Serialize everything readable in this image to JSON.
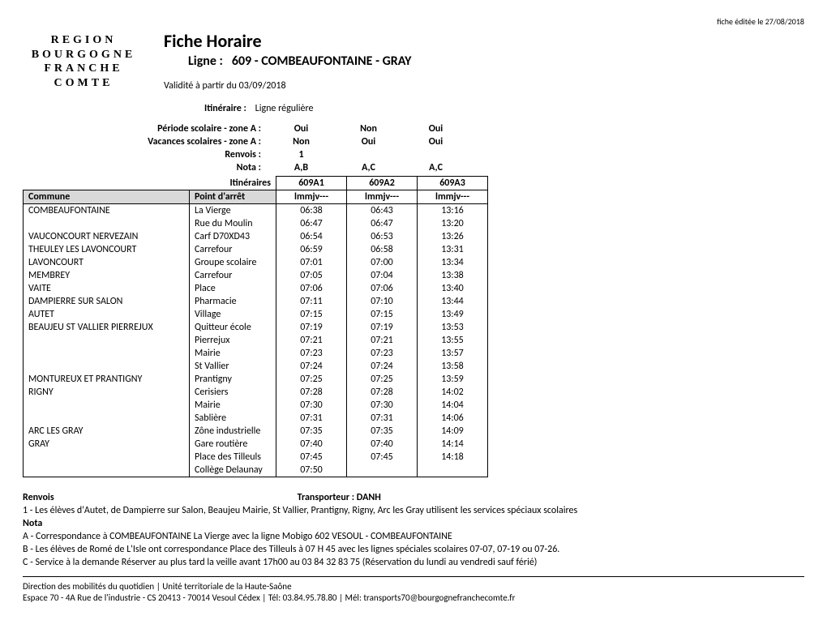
{
  "edit_date": "fiche éditée le 27/08/2018",
  "logo_lines": [
    "REGION",
    "BOURGOGNE",
    "FRANCHE",
    "COMTE"
  ],
  "main_title": "Fiche Horaire",
  "line_prefix": "Ligne :",
  "line_name": "609 - COMBEAUFONTAINE - GRAY",
  "validity": "Validité à partir du 03/09/2018",
  "itinerary_label": "Itinéraire :",
  "itinerary_value": "Ligne régulière",
  "meta_rows": [
    {
      "label": "Période scolaire - zone A :",
      "vals": [
        "Oui",
        "Non",
        "Oui"
      ]
    },
    {
      "label": "Vacances scolaires - zone A :",
      "vals": [
        "Non",
        "Oui",
        "Oui"
      ]
    },
    {
      "label": "Renvois :",
      "vals": [
        "1",
        "",
        ""
      ]
    },
    {
      "label": "Nota :",
      "vals": [
        "A,B",
        "A,C",
        "A,C"
      ]
    }
  ],
  "header_itin_label": "Itinéraires",
  "header_commune": "Commune",
  "header_stop": "Point d'arrêt",
  "itin_codes": [
    "609A1",
    "609A2",
    "609A3"
  ],
  "day_codes": [
    "lmmjv---",
    "lmmjv---",
    "lmmjv---"
  ],
  "rows": [
    {
      "commune": "COMBEAUFONTAINE",
      "stop": "La Vierge",
      "t": [
        "06:38",
        "06:43",
        "13:16"
      ]
    },
    {
      "commune": "",
      "stop": "Rue du Moulin",
      "t": [
        "06:47",
        "06:47",
        "13:20"
      ]
    },
    {
      "commune": "VAUCONCOURT NERVEZAIN",
      "stop": "Carf D70XD43",
      "t": [
        "06:54",
        "06:53",
        "13:26"
      ]
    },
    {
      "commune": "THEULEY LES LAVONCOURT",
      "stop": "Carrefour",
      "t": [
        "06:59",
        "06:58",
        "13:31"
      ]
    },
    {
      "commune": "LAVONCOURT",
      "stop": "Groupe scolaire",
      "t": [
        "07:01",
        "07:00",
        "13:34"
      ]
    },
    {
      "commune": "MEMBREY",
      "stop": "Carrefour",
      "t": [
        "07:05",
        "07:04",
        "13:38"
      ]
    },
    {
      "commune": "VAITE",
      "stop": "Place",
      "t": [
        "07:06",
        "07:06",
        "13:40"
      ]
    },
    {
      "commune": "DAMPIERRE SUR SALON",
      "stop": "Pharmacie",
      "t": [
        "07:11",
        "07:10",
        "13:44"
      ]
    },
    {
      "commune": "AUTET",
      "stop": "Village",
      "t": [
        "07:15",
        "07:15",
        "13:49"
      ]
    },
    {
      "commune": "BEAUJEU ST VALLIER PIERREJUX",
      "stop": "Quitteur école",
      "t": [
        "07:19",
        "07:19",
        "13:53"
      ]
    },
    {
      "commune": "",
      "stop": "Pierrejux",
      "t": [
        "07:21",
        "07:21",
        "13:55"
      ]
    },
    {
      "commune": "",
      "stop": "Mairie",
      "t": [
        "07:23",
        "07:23",
        "13:57"
      ]
    },
    {
      "commune": "",
      "stop": "St Vallier",
      "t": [
        "07:24",
        "07:24",
        "13:58"
      ]
    },
    {
      "commune": "MONTUREUX ET PRANTIGNY",
      "stop": "Prantigny",
      "t": [
        "07:25",
        "07:25",
        "13:59"
      ]
    },
    {
      "commune": "RIGNY",
      "stop": "Cerisiers",
      "t": [
        "07:28",
        "07:28",
        "14:02"
      ]
    },
    {
      "commune": "",
      "stop": "Mairie",
      "t": [
        "07:30",
        "07:30",
        "14:04"
      ]
    },
    {
      "commune": "",
      "stop": "Sablière",
      "t": [
        "07:31",
        "07:31",
        "14:06"
      ]
    },
    {
      "commune": "ARC LES GRAY",
      "stop": "Zône industrielle",
      "t": [
        "07:35",
        "07:35",
        "14:09"
      ]
    },
    {
      "commune": "GRAY",
      "stop": "Gare routière",
      "t": [
        "07:40",
        "07:40",
        "14:14"
      ]
    },
    {
      "commune": "",
      "stop": "Place des Tilleuls",
      "t": [
        "07:45",
        "07:45",
        "14:18"
      ]
    },
    {
      "commune": "",
      "stop": "Collège Delaunay",
      "t": [
        "07:50",
        "",
        ""
      ]
    }
  ],
  "renvois_title": "Renvois",
  "transporteur": "Transporteur : DANH",
  "renvois_lines": [
    "1 - Les élèves d'Autet, de Dampierre sur Salon, Beaujeu Mairie, St Vallier, Prantigny, Rigny, Arc les Gray utilisent les services spéciaux scolaires"
  ],
  "nota_title": "Nota",
  "nota_lines": [
    "A - Correspondance à COMBEAUFONTAINE La Vierge avec la ligne Mobigo 602 VESOUL - COMBEAUFONTAINE",
    "B - Les élèves de Romé de L'Isle ont correspondance Place des Tilleuls à 07 H 45 avec les lignes spéciales scolaires 07-07, 07-19 ou 07-26.",
    "C - Service à la demande Réserver au plus tard la veille avant 17h00 au 03 84 32 83 75 (Réservation du lundi au vendredi sauf férié)"
  ],
  "footer_lines": [
    "Direction des mobilités du quotidien | Unité territoriale de la Haute-Saône",
    "Espace 70 - 4A Rue de l'industrie - CS 20413 - 70014 Vesoul Cédex | Tél: 03.84.95.78.80 | Mél: transports70@bourgognefranchecomte.fr"
  ]
}
